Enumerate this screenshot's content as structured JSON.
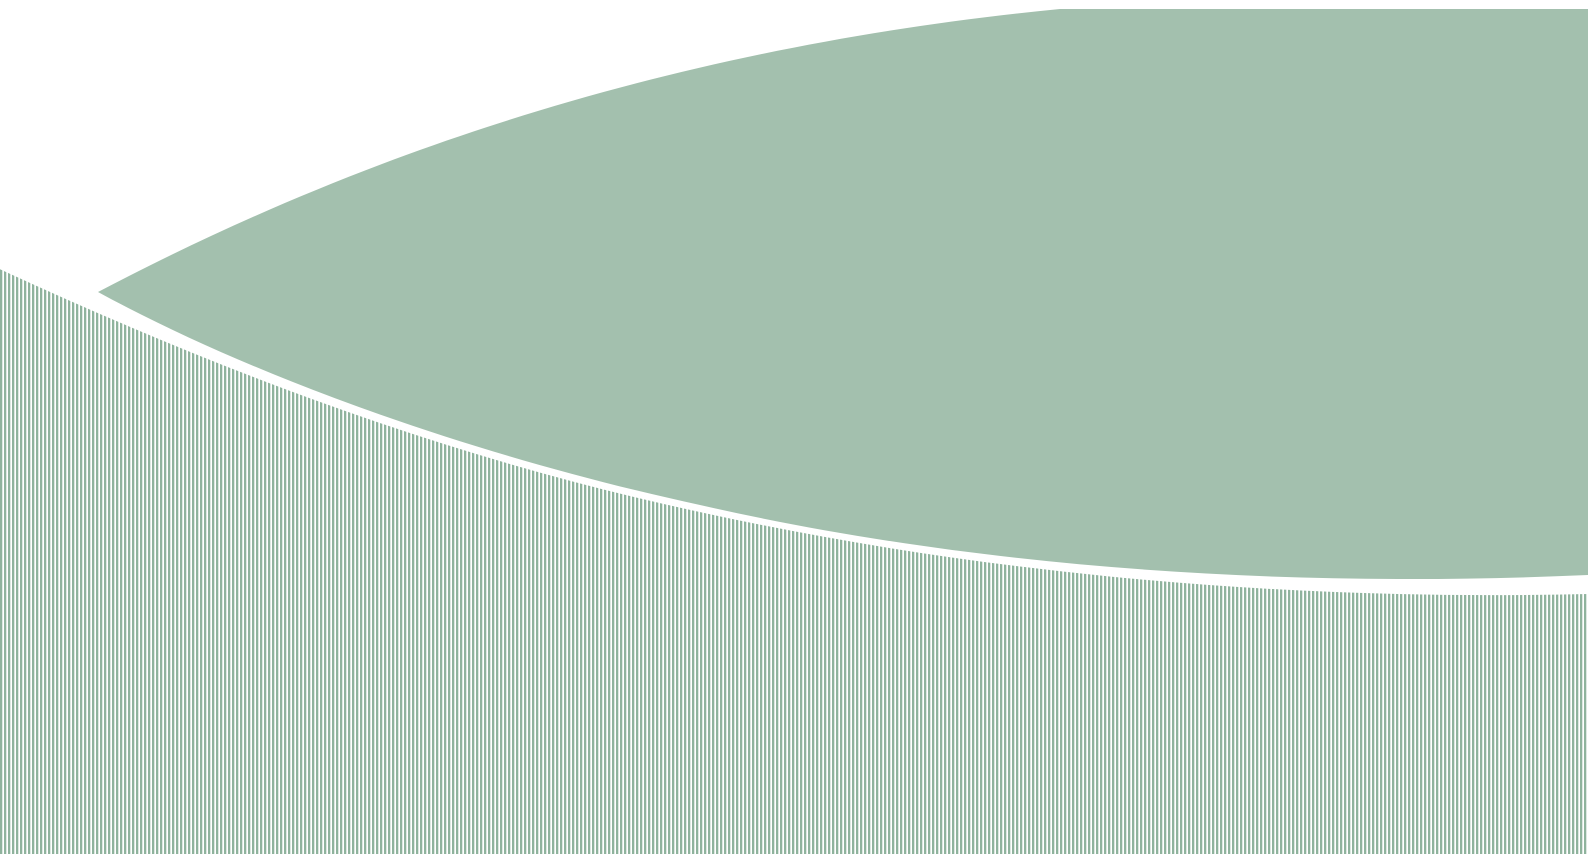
{
  "graphic": {
    "background_color": "#ffffff",
    "solid_shape_color": "#a3c0ae",
    "stripe_color": "#8fb39d",
    "stripe_gap_color": "#ffffff",
    "separator_color": "#ffffff",
    "icon": "abstract-wave-graphic"
  }
}
